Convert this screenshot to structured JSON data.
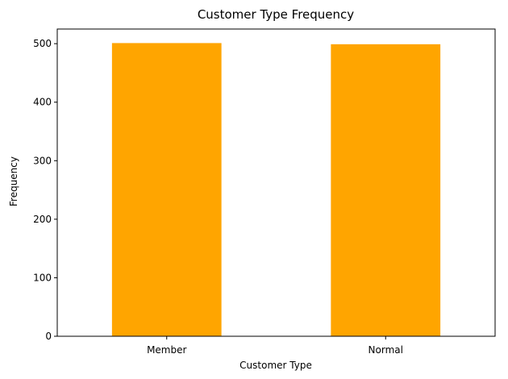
{
  "chart_data": {
    "type": "bar",
    "title": "Customer Type Frequency",
    "xlabel": "Customer Type",
    "ylabel": "Frequency",
    "categories": [
      "Member",
      "Normal"
    ],
    "values": [
      501,
      499
    ],
    "ylim": [
      0,
      525
    ],
    "yticks": [
      0,
      100,
      200,
      300,
      400,
      500
    ],
    "grid": false,
    "legend": "none",
    "bar_color": "#ffa500"
  }
}
